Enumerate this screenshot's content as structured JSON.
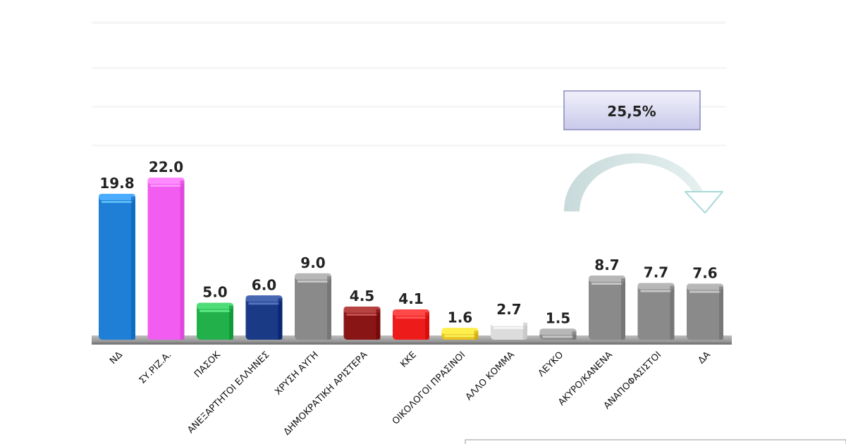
{
  "chart_data": {
    "type": "bar",
    "title": "",
    "xlabel": "",
    "ylabel": "",
    "ylim": [
      0,
      22.0
    ],
    "grid": false,
    "legend": "none",
    "categories": [
      "ΝΔ",
      "ΣΥ.ΡΙΖ.Α.",
      "ΠΑΣΟΚ",
      "ΑΝΕΞΑΡΤΗΤΟΙ ΕΛΛΗΝΕΣ",
      "ΧΡΥΣΗ ΑΥΓΗ",
      "ΔΗΜΟΚΡΑΤΙΚΗ ΑΡΙΣΤΕΡΑ",
      "ΚΚΕ",
      "ΟΙΚΟΛΟΓΟΙ ΠΡΑΣΙΝΟΙ",
      "ΑΛΛΟ ΚΟΜΜΑ",
      "ΛΕΥΚΟ",
      "ΑΚΥΡΟ/ΚΑΝΕΝΑ",
      "ΑΝΑΠΟΦΑΣΙΣΤΟΙ",
      "ΔΑ"
    ],
    "values": [
      19.8,
      22.0,
      5.0,
      6.0,
      9.0,
      4.5,
      4.1,
      1.6,
      2.7,
      1.5,
      8.7,
      7.7,
      7.6
    ],
    "value_labels": [
      "19.8",
      "22.0",
      "5.0",
      "6.0",
      "9.0",
      "4.5",
      "4.1",
      "1.6",
      "2.7",
      "1.5",
      "8.7",
      "7.7",
      "7.6"
    ],
    "colors": [
      "#1f7fd6",
      "#f25cf0",
      "#22b04a",
      "#1a3a85",
      "#8a8a8a",
      "#8a1515",
      "#ee1b1b",
      "#e8c21f",
      "#dcdcdc",
      "#8a8a8a",
      "#8a8a8a",
      "#8a8a8a",
      "#8a8a8a"
    ],
    "annotation": {
      "text": "25,5%",
      "arrow_icon": "curved-arrow-icon"
    }
  }
}
